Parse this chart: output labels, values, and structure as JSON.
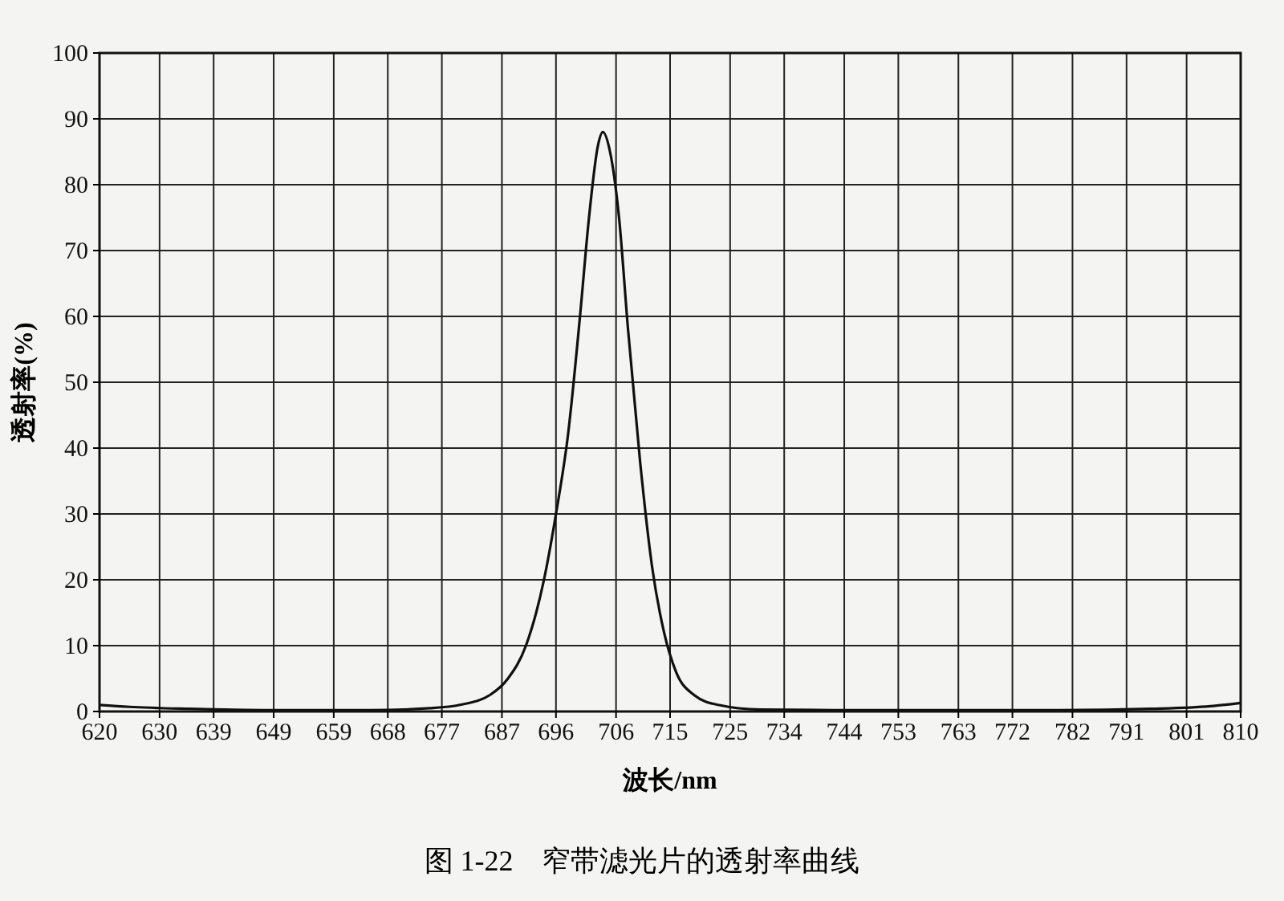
{
  "chart_data": {
    "type": "line",
    "title": "图 1-22　窄带滤光片的透射率曲线",
    "xlabel": "波长/nm",
    "ylabel": "透射率(%)",
    "x": [
      620,
      625,
      635,
      650,
      665,
      675,
      680,
      685,
      688,
      691,
      694,
      696,
      698,
      700,
      701.5,
      703,
      703.8,
      705,
      706.5,
      708,
      710,
      712,
      714,
      716,
      719,
      723,
      730,
      750,
      780,
      795,
      805,
      810
    ],
    "series": [
      {
        "color": "#111111",
        "values": [
          1.0,
          0.7,
          0.4,
          0.2,
          0.2,
          0.5,
          1,
          2.5,
          5,
          10,
          20,
          30,
          42,
          60,
          75,
          86,
          88,
          85,
          75,
          58,
          38,
          22,
          12,
          6,
          2.5,
          1,
          0.3,
          0.2,
          0.2,
          0.4,
          0.8,
          1.3
        ]
      }
    ],
    "xlim": [
      620,
      810
    ],
    "ylim": [
      0,
      100
    ],
    "xticks": [
      620,
      630,
      639,
      649,
      659,
      668,
      677,
      687,
      696,
      706,
      715,
      725,
      734,
      744,
      753,
      763,
      772,
      782,
      791,
      801,
      810
    ],
    "yticks": [
      0,
      10,
      20,
      30,
      40,
      50,
      60,
      70,
      80,
      90,
      100
    ],
    "grid": true,
    "marker": "none",
    "line_style": "solid"
  }
}
